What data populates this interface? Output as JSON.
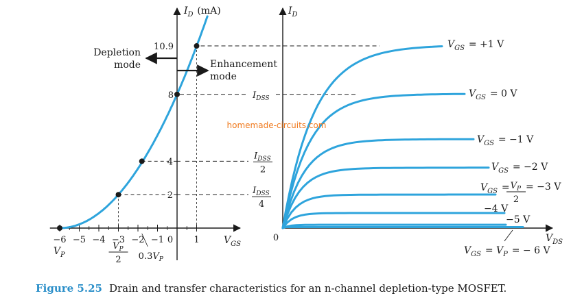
{
  "watermark": "homemade-circuits.com",
  "caption": {
    "label": "Figure 5.25",
    "text": "Drain and transfer characteristics for an n-channel depletion-type MOSFET."
  },
  "colors": {
    "curve": "#2ea4dc",
    "axis": "#1a1a1a",
    "watermark": "#f07a1e",
    "caption_label": "#2b8fc9"
  },
  "chart_data": [
    {
      "type": "line",
      "name": "transfer",
      "ylabel": "I_D (mA)",
      "xlabel": "V_GS",
      "xlim": [
        -6.2,
        3.0
      ],
      "ylim": [
        0,
        13.0
      ],
      "x_ticks": [
        -6,
        -5,
        -4,
        -3,
        -2,
        -1,
        0,
        1
      ],
      "x_tick_labels": [
        "−6",
        "−5",
        "−4",
        "−3",
        "−2",
        "−1",
        "0",
        "1"
      ],
      "y_ticks": [
        2,
        4,
        8,
        10.9
      ],
      "y_tick_labels": [
        "2",
        "4",
        "8",
        "10.9"
      ],
      "points": [
        {
          "x": -6,
          "y": 0
        },
        {
          "x": -3,
          "y": 2
        },
        {
          "x": -1.8,
          "y": 4
        },
        {
          "x": 0,
          "y": 8
        },
        {
          "x": 1,
          "y": 10.9
        }
      ],
      "x_annotations": [
        {
          "at": -6,
          "text": "V_P"
        },
        {
          "at": -3,
          "text": "V_P/2"
        },
        {
          "at": -1.8,
          "text": "0.3V_P"
        }
      ],
      "labels": {
        "depletion": [
          "Depletion",
          "mode"
        ],
        "enhancement": [
          "Enhancement",
          "mode"
        ]
      }
    },
    {
      "type": "line",
      "name": "drain",
      "ylabel": "I_D",
      "xlabel": "V_DS",
      "origin_label": "0",
      "level_labels": [
        {
          "level": 8,
          "text": "I_DSS"
        },
        {
          "level": 4,
          "text": "I_DSS/2"
        },
        {
          "level": 2,
          "text": "I_DSS/4"
        }
      ],
      "series": [
        {
          "name": "V_GS = +1 V",
          "id_sat": 10.9
        },
        {
          "name": "V_GS = 0 V",
          "id_sat": 8
        },
        {
          "name": "V_GS = −1 V",
          "id_sat": 5.3
        },
        {
          "name": "V_GS = −2 V",
          "id_sat": 3.6
        },
        {
          "name": "V_GS = V_P/2 = −3 V",
          "id_sat": 2
        },
        {
          "name": "−4 V",
          "id_sat": 0.9
        },
        {
          "name": "−5 V",
          "id_sat": 0.2
        },
        {
          "name": "V_GS = V_P = − 6 V",
          "id_sat": 0
        }
      ]
    }
  ]
}
